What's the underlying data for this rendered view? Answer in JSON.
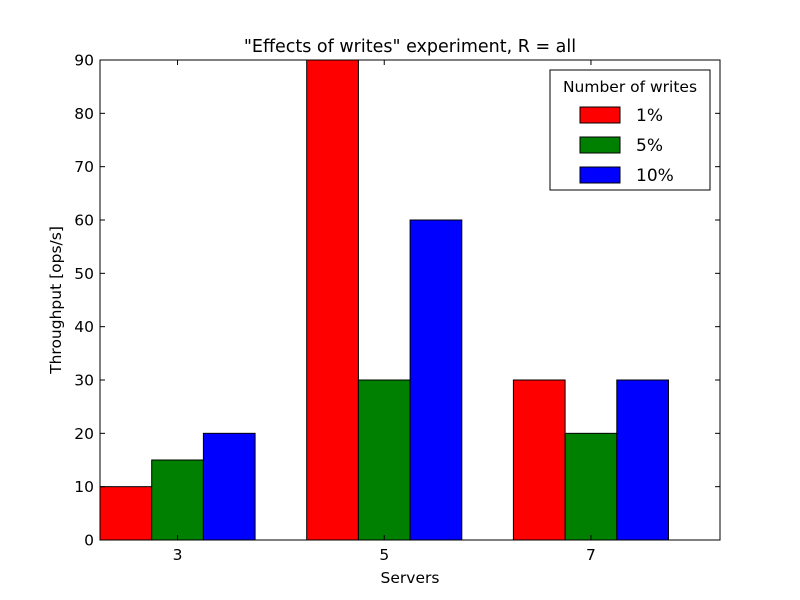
{
  "chart_data": {
    "type": "bar",
    "title": "\"Effects of writes\" experiment, R = all",
    "xlabel": "Servers",
    "ylabel": "Throughput [ops/s]",
    "categories": [
      "3",
      "5",
      "7"
    ],
    "ylim": [
      0,
      90
    ],
    "yticks": [
      0,
      10,
      20,
      30,
      40,
      50,
      60,
      70,
      80,
      90
    ],
    "grid": false,
    "legend": {
      "title": "Number of writes",
      "placement": "top-right"
    },
    "series": [
      {
        "name": "1%",
        "color": "#ff0000",
        "values": [
          10,
          90,
          30
        ]
      },
      {
        "name": "5%",
        "color": "#008000",
        "values": [
          15,
          30,
          20
        ]
      },
      {
        "name": "10%",
        "color": "#0000ff",
        "values": [
          20,
          60,
          30
        ]
      }
    ]
  }
}
